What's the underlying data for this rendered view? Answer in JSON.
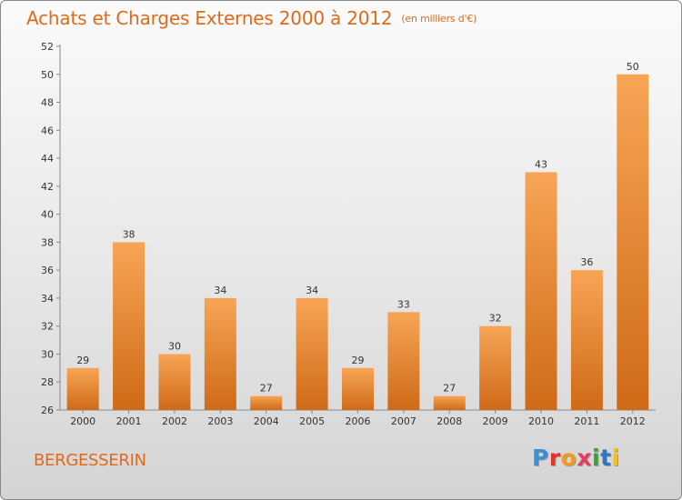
{
  "title": "Achats et Charges Externes 2000 à 2012",
  "subtitle": "(en milliers d'€)",
  "commune": "BERGESSERIN",
  "logo": {
    "text": "Proxiti",
    "letter_colors": [
      "#3a8fd6",
      "#e8312a",
      "#f39a1c",
      "#e83a5a",
      "#3aa335",
      "#2f76c2",
      "#f2c11a"
    ]
  },
  "colors": {
    "title": "#e06a1b",
    "bar_light": "#f7a555",
    "bar_dark": "#cf6a17",
    "axis": "#888888",
    "grid_text": "#333333"
  },
  "chart_data": {
    "type": "bar",
    "categories": [
      "2000",
      "2001",
      "2002",
      "2003",
      "2004",
      "2005",
      "2006",
      "2007",
      "2008",
      "2009",
      "2010",
      "2011",
      "2012"
    ],
    "values": [
      29,
      38,
      30,
      34,
      27,
      34,
      29,
      33,
      27,
      32,
      43,
      36,
      50
    ],
    "ylim": [
      26,
      52
    ],
    "yticks": [
      26,
      28,
      30,
      32,
      34,
      36,
      38,
      40,
      42,
      44,
      46,
      48,
      50,
      52
    ],
    "grid": false,
    "data_labels": true
  }
}
